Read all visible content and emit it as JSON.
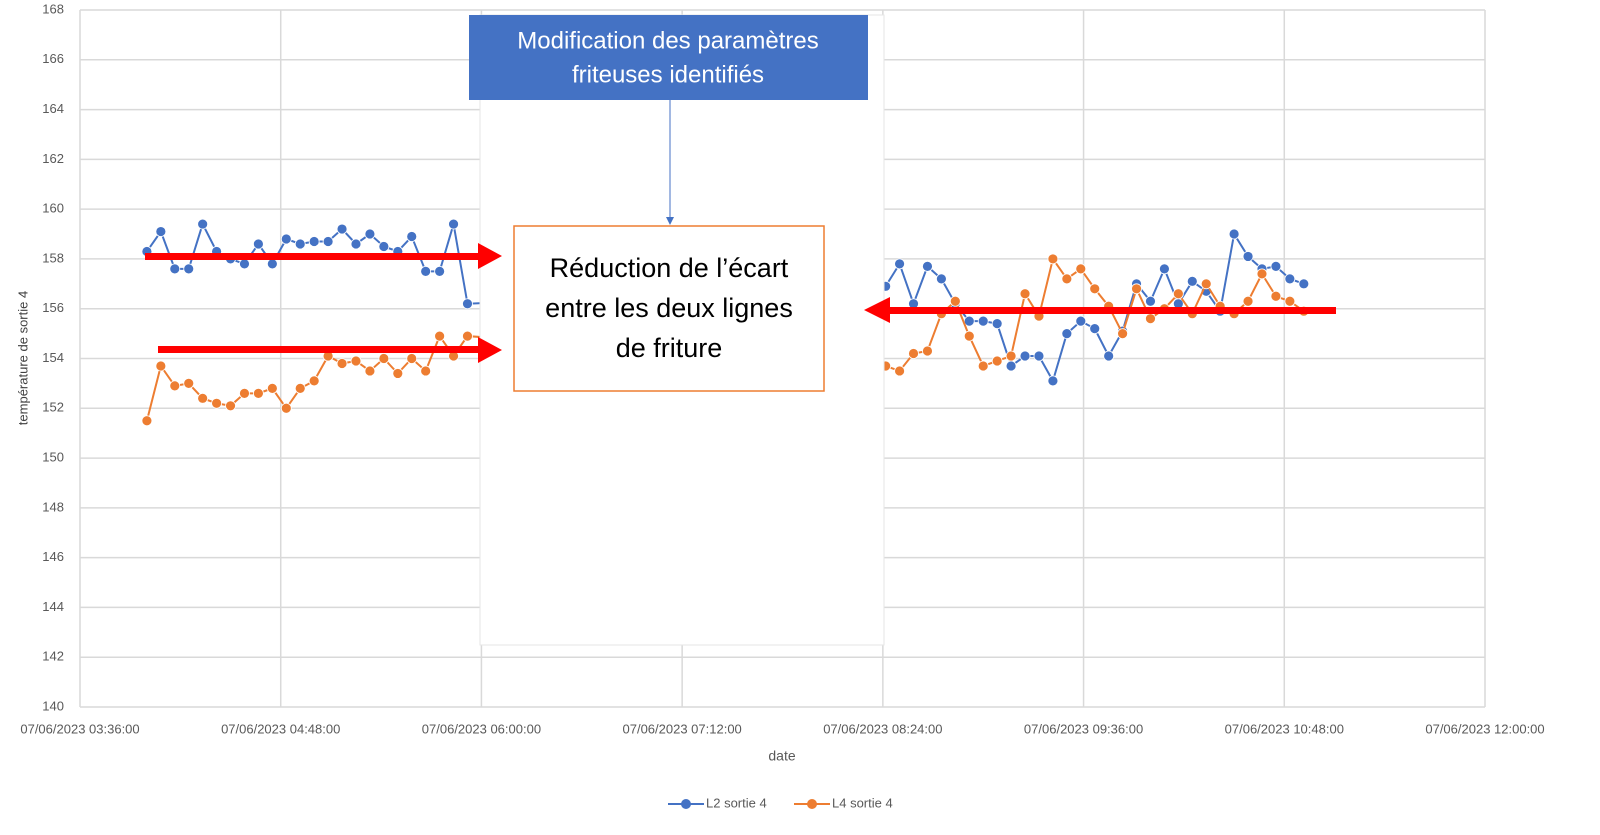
{
  "chart_data": {
    "type": "line",
    "xlabel": "date",
    "ylabel": "température de sortie 4",
    "x": [
      "07/06/2023 04:00:00",
      "07/06/2023 04:05:00",
      "07/06/2023 04:10:00",
      "07/06/2023 04:15:00",
      "07/06/2023 04:20:00",
      "07/06/2023 04:25:00",
      "07/06/2023 04:30:00",
      "07/06/2023 04:35:00",
      "07/06/2023 04:40:00",
      "07/06/2023 04:45:00",
      "07/06/2023 04:50:00",
      "07/06/2023 04:55:00",
      "07/06/2023 05:00:00",
      "07/06/2023 05:05:00",
      "07/06/2023 05:10:00",
      "07/06/2023 05:15:00",
      "07/06/2023 05:20:00",
      "07/06/2023 05:25:00",
      "07/06/2023 05:30:00",
      "07/06/2023 05:35:00",
      "07/06/2023 05:40:00",
      "07/06/2023 05:45:00",
      "07/06/2023 05:50:00",
      "07/06/2023 05:55:00",
      "07/06/2023 08:25:00",
      "07/06/2023 08:30:00",
      "07/06/2023 08:35:00",
      "07/06/2023 08:40:00",
      "07/06/2023 08:45:00",
      "07/06/2023 08:50:00",
      "07/06/2023 08:55:00",
      "07/06/2023 09:00:00",
      "07/06/2023 09:05:00",
      "07/06/2023 09:10:00",
      "07/06/2023 09:15:00",
      "07/06/2023 09:20:00",
      "07/06/2023 09:25:00",
      "07/06/2023 09:30:00",
      "07/06/2023 09:35:00",
      "07/06/2023 09:40:00",
      "07/06/2023 09:45:00",
      "07/06/2023 09:50:00",
      "07/06/2023 09:55:00",
      "07/06/2023 10:00:00",
      "07/06/2023 10:05:00",
      "07/06/2023 10:10:00",
      "07/06/2023 10:15:00",
      "07/06/2023 10:20:00",
      "07/06/2023 10:25:00",
      "07/06/2023 10:30:00",
      "07/06/2023 10:35:00",
      "07/06/2023 10:40:00",
      "07/06/2023 10:45:00",
      "07/06/2023 10:50:00",
      "07/06/2023 10:55:00"
    ],
    "series": [
      {
        "name": "L2 sortie 4",
        "color": "#4472c4",
        "values": [
          158.3,
          159.1,
          157.6,
          157.6,
          159.4,
          158.3,
          158.0,
          157.8,
          158.6,
          157.8,
          158.8,
          158.6,
          158.7,
          158.7,
          159.2,
          158.6,
          159.0,
          158.5,
          158.3,
          158.9,
          157.5,
          157.5,
          159.4,
          156.2,
          156.9,
          157.8,
          156.2,
          157.7,
          157.2,
          156.2,
          155.5,
          155.5,
          155.4,
          153.7,
          154.1,
          154.1,
          153.1,
          155.0,
          155.5,
          155.2,
          154.1,
          155.1,
          157.0,
          156.3,
          157.6,
          156.2,
          157.1,
          156.7,
          155.9,
          159.0,
          158.1,
          157.6,
          157.7,
          157.2,
          157.0
        ]
      },
      {
        "name": "L4 sortie 4",
        "color": "#ed7d31",
        "values": [
          151.5,
          153.7,
          152.9,
          153.0,
          152.4,
          152.2,
          152.1,
          152.6,
          152.6,
          152.8,
          152.0,
          152.8,
          153.1,
          154.1,
          153.8,
          153.9,
          153.5,
          154.0,
          153.4,
          154.0,
          153.5,
          154.9,
          154.1,
          154.9,
          153.7,
          153.5,
          154.2,
          154.3,
          155.8,
          156.3,
          154.9,
          153.7,
          153.9,
          154.1,
          156.6,
          155.7,
          158.0,
          157.2,
          157.6,
          156.8,
          156.1,
          155.0,
          156.8,
          155.6,
          156.0,
          156.6,
          155.8,
          157.0,
          156.1,
          155.8,
          156.3,
          157.4,
          156.5,
          156.3,
          155.9
        ]
      }
    ],
    "xlim": [
      "07/06/2023 03:36:00",
      "07/06/2023 12:00:00"
    ],
    "xticks": [
      "07/06/2023 03:36:00",
      "07/06/2023 04:48:00",
      "07/06/2023 06:00:00",
      "07/06/2023 07:12:00",
      "07/06/2023 08:24:00",
      "07/06/2023 09:36:00",
      "07/06/2023 10:48:00",
      "07/06/2023 12:00:00"
    ],
    "ylim": [
      140,
      168
    ],
    "yticks": [
      140,
      142,
      144,
      146,
      148,
      150,
      152,
      154,
      156,
      158,
      160,
      162,
      164,
      166,
      168
    ],
    "grid": true,
    "legend": "bottom",
    "annotations": [
      {
        "text": [
          "Modification des paramètres",
          "friteuses identifiés"
        ]
      },
      {
        "text": [
          "Réduction de l’écart",
          "entre les deux lignes",
          "de friture"
        ]
      }
    ]
  }
}
